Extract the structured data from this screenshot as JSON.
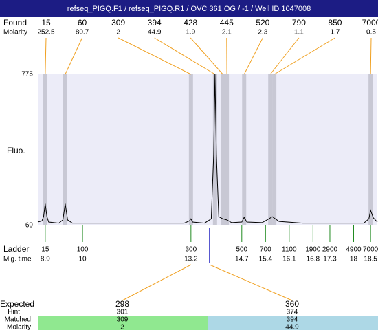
{
  "title": "refseq_PIGQ.F1 / refseq_PIGQ.R1 / OVC 361 OG / -1 / Well ID 1047008",
  "found": {
    "label": "Found",
    "molarity_label": "Molarity",
    "peaks": [
      {
        "size": 15,
        "molarity": 252.5,
        "time": 8.9
      },
      {
        "size": 60,
        "molarity": 80.7,
        "time": 9.49
      },
      {
        "size": 309,
        "molarity": 2,
        "time": 13.2
      },
      {
        "size": 394,
        "molarity": 44.9,
        "time": 13.91
      },
      {
        "size": 428,
        "molarity": 1.9,
        "time": 14.14
      },
      {
        "size": 445,
        "molarity": 2.1,
        "time": 14.26
      },
      {
        "size": 520,
        "molarity": 2.3,
        "time": 14.77
      },
      {
        "size": 790,
        "molarity": 1.1,
        "time": 15.54
      },
      {
        "size": 850,
        "molarity": 1.7,
        "time": 15.66
      },
      {
        "size": 7000,
        "molarity": 0.5,
        "time": 18.5
      }
    ]
  },
  "fluorescence": {
    "label": "Fluo.",
    "ylim": [
      69,
      775
    ],
    "yticks": [
      775,
      69
    ]
  },
  "xlim": [
    8.68,
    18.7
  ],
  "trace": {
    "time": [
      8.68,
      8.8,
      8.85,
      8.9,
      8.95,
      9.0,
      9.3,
      9.42,
      9.49,
      9.56,
      9.7,
      13.0,
      13.15,
      13.2,
      13.25,
      13.6,
      13.8,
      13.87,
      13.91,
      13.95,
      14.02,
      14.14,
      14.26,
      14.4,
      14.7,
      14.77,
      14.85,
      15.3,
      15.5,
      15.6,
      15.8,
      16.5,
      18.3,
      18.45,
      18.5,
      18.58,
      18.7
    ],
    "fluo": [
      85,
      90,
      110,
      170,
      110,
      85,
      80,
      95,
      170,
      95,
      80,
      80,
      90,
      100,
      85,
      80,
      100,
      400,
      775,
      400,
      110,
      100,
      95,
      82,
      85,
      107,
      85,
      82,
      100,
      110,
      88,
      80,
      80,
      100,
      140,
      105,
      85
    ]
  },
  "ladder": {
    "label": "Ladder",
    "time_label": "Mig. time",
    "steps": [
      {
        "size": 15,
        "time": 8.9
      },
      {
        "size": 100,
        "time": 10
      },
      {
        "size": 300,
        "time": 13.2
      },
      {
        "size": 500,
        "time": 14.7
      },
      {
        "size": 700,
        "time": 15.4
      },
      {
        "size": 1100,
        "time": 16.1
      },
      {
        "size": 1900,
        "time": 16.8
      },
      {
        "size": 2900,
        "time": 17.3
      },
      {
        "size": 4900,
        "time": 18
      },
      {
        "size": 7000,
        "time": 18.5
      }
    ]
  },
  "expected": {
    "labels": [
      "Expected",
      "Hint",
      "Matched",
      "Molarity"
    ],
    "items": [
      {
        "expected": 298,
        "hint": 301,
        "matched": 309,
        "molarity": 2
      },
      {
        "expected": 360,
        "hint": 374,
        "matched": 394,
        "molarity": 44.9
      }
    ]
  }
}
